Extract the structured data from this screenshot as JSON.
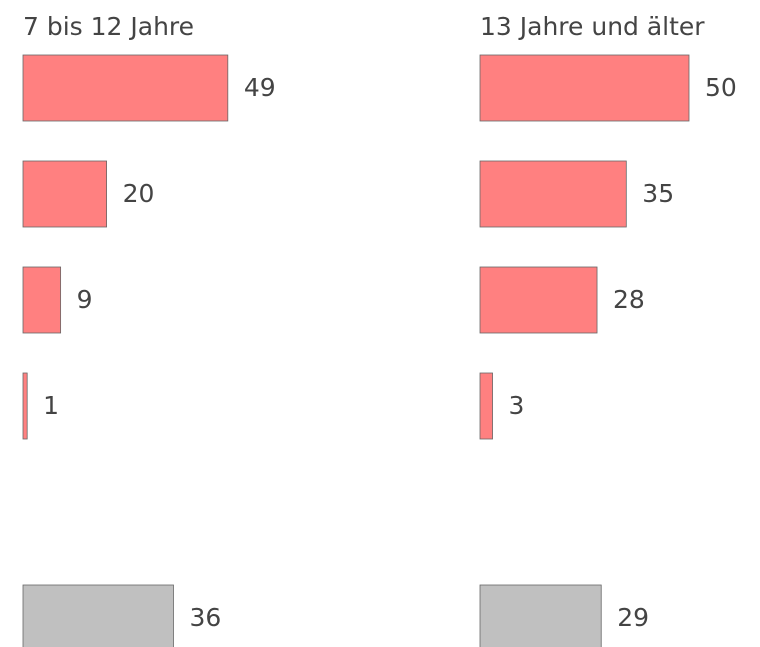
{
  "chart_data": [
    {
      "type": "bar",
      "orientation": "horizontal",
      "title": "7 bis 12 Jahre",
      "categories": [
        null,
        null,
        null,
        null,
        null,
        null
      ],
      "values": [
        49,
        20,
        9,
        1,
        null,
        36
      ],
      "colors": [
        "#ff8080",
        "#ff8080",
        "#ff8080",
        "#ff8080",
        null,
        "#c0c0c0"
      ],
      "xlim": [
        0,
        50
      ]
    },
    {
      "type": "bar",
      "orientation": "horizontal",
      "title": "13 Jahre und älter",
      "categories": [
        null,
        null,
        null,
        null,
        null,
        null
      ],
      "values": [
        50,
        35,
        28,
        3,
        null,
        29
      ],
      "colors": [
        "#ff8080",
        "#ff8080",
        "#ff8080",
        "#ff8080",
        null,
        "#c0c0c0"
      ],
      "xlim": [
        0,
        50
      ]
    }
  ]
}
